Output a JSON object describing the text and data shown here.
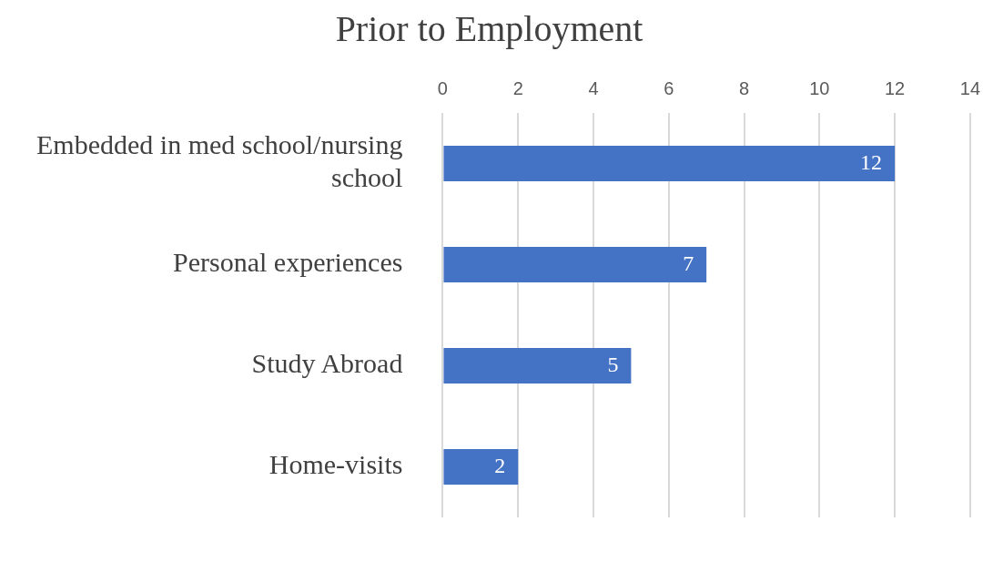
{
  "chart_data": {
    "type": "bar",
    "orientation": "horizontal",
    "title": "Prior to Employment",
    "categories": [
      "Embedded in med school/nursing school",
      "Personal experiences",
      "Study Abroad",
      "Home-visits"
    ],
    "values": [
      12,
      7,
      5,
      2
    ],
    "color": "#4472c4",
    "xlim": [
      0,
      14
    ],
    "xticks": [
      0,
      2,
      4,
      6,
      8,
      10,
      12,
      14
    ],
    "grid": "x",
    "data_labels": true,
    "legend": false
  }
}
